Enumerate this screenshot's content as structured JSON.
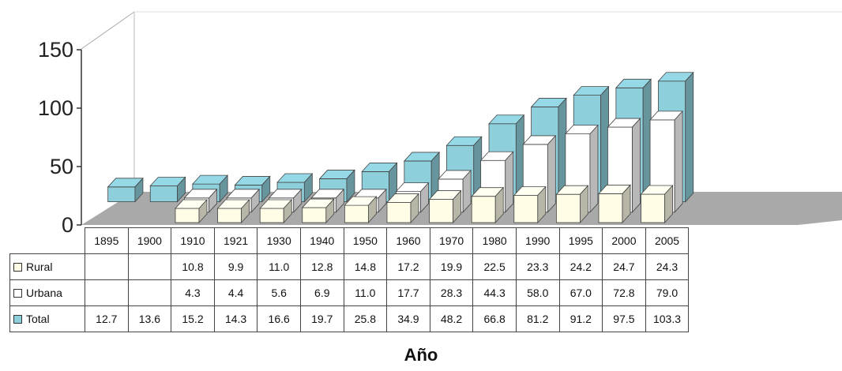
{
  "chart_data": {
    "type": "bar",
    "categories": [
      "1895",
      "1900",
      "1910",
      "1921",
      "1930",
      "1940",
      "1950",
      "1960",
      "1970",
      "1980",
      "1990",
      "1995",
      "2000",
      "2005"
    ],
    "series": [
      {
        "name": "Rural",
        "values": [
          null,
          null,
          10.8,
          9.9,
          11.0,
          12.8,
          14.8,
          17.2,
          19.9,
          22.5,
          23.3,
          24.2,
          24.7,
          24.3
        ],
        "color": "#fffde6"
      },
      {
        "name": "Urbana",
        "values": [
          null,
          null,
          4.3,
          4.4,
          5.6,
          6.9,
          11.0,
          17.7,
          28.3,
          44.3,
          58.0,
          67.0,
          72.8,
          79.0
        ],
        "color": "#ffffff"
      },
      {
        "name": "Total",
        "values": [
          12.7,
          13.6,
          15.2,
          14.3,
          16.6,
          19.7,
          25.8,
          34.9,
          48.2,
          66.8,
          81.2,
          91.2,
          97.5,
          103.3
        ],
        "color": "#8ecfdc"
      }
    ],
    "table_rows": [
      {
        "label": "Rural",
        "cells": [
          "",
          "",
          "10.8",
          "9.9",
          "11.0",
          "12.8",
          "14.8",
          "17.2",
          "19.9",
          "22.5",
          "23.3",
          "24.2",
          "24.7",
          "24.3"
        ]
      },
      {
        "label": "Urbana",
        "cells": [
          "",
          "",
          "4.3",
          "4.4",
          "5.6",
          "6.9",
          "11.0",
          "17.7",
          "28.3",
          "44.3",
          "58.0",
          "67.0",
          "72.8",
          "79.0"
        ]
      },
      {
        "label": "Total",
        "cells": [
          "12.7",
          "13.6",
          "15.2",
          "14.3",
          "16.6",
          "19.7",
          "25.8",
          "34.9",
          "48.2",
          "66.8",
          "81.2",
          "91.2",
          "97.5",
          "103.3"
        ]
      }
    ],
    "yticks": [
      "0",
      "50",
      "100",
      "150"
    ],
    "ylim": [
      0,
      150
    ],
    "xlabel": "Año",
    "ylabel": "",
    "view": "3d-bars-with-data-table",
    "floor_color": "#a9a9a9",
    "wall_color": "#ffffff"
  }
}
